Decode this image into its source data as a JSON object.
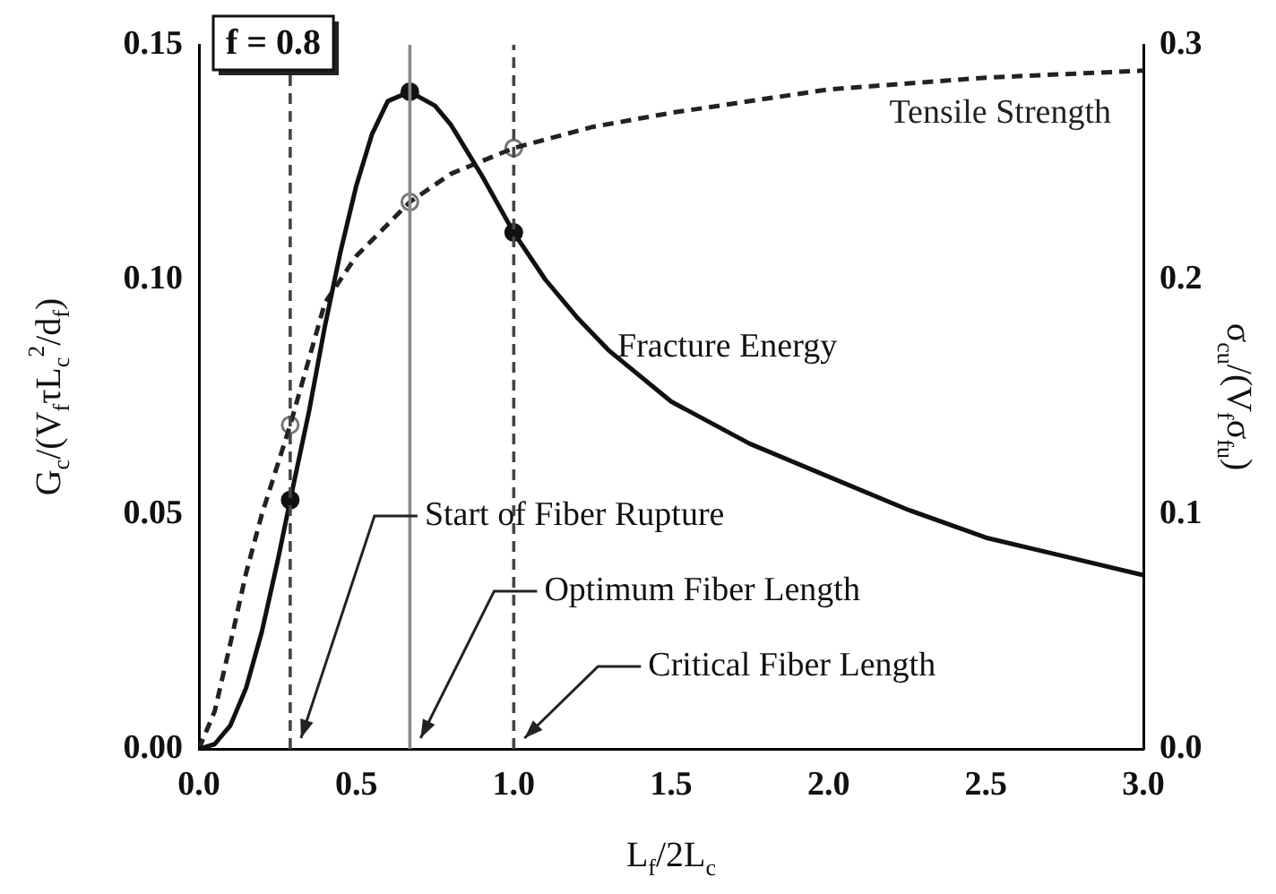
{
  "chart_data": {
    "type": "line",
    "xlabel": "L$_{f}$/2L$_{c}$",
    "ylabel": "G$_{c}$/(V$_{f}$τL$_{c}$$^{2}$/d$_{f}$)",
    "y2label": "σ$_{cu}$/(V$_{f}$σ$_{fu}$)",
    "xlim": [
      0,
      3
    ],
    "xticks": [
      {
        "value": 0,
        "label": "0.0"
      },
      {
        "value": 0.5,
        "label": "0.5"
      },
      {
        "value": 1,
        "label": "1.0"
      },
      {
        "value": 1.5,
        "label": "1.5"
      },
      {
        "value": 2,
        "label": "2.0"
      },
      {
        "value": 2.5,
        "label": "2.5"
      },
      {
        "value": 3,
        "label": "3.0"
      }
    ],
    "ylim": [
      0,
      0.15
    ],
    "yticks": [
      {
        "value": 0,
        "label": "0.00"
      },
      {
        "value": 0.05,
        "label": "0.05"
      },
      {
        "value": 0.1,
        "label": "0.10"
      },
      {
        "value": 0.15,
        "label": "0.15"
      }
    ],
    "y2lim": [
      0,
      0.3
    ],
    "y2ticks": [
      {
        "value": 0,
        "label": "0.0"
      },
      {
        "value": 0.1,
        "label": "0.1"
      },
      {
        "value": 0.2,
        "label": "0.2"
      },
      {
        "value": 0.3,
        "label": "0.3"
      }
    ],
    "grid": false,
    "legend": false,
    "series": [
      {
        "name": "Fracture Energy",
        "type": "line",
        "color": "#111111",
        "line_style": "solid",
        "marker": "none",
        "x": [
          0,
          0.05,
          0.1,
          0.15,
          0.2,
          0.25,
          0.29,
          0.35,
          0.4,
          0.45,
          0.5,
          0.55,
          0.6,
          0.67,
          0.75,
          0.8,
          0.9,
          1.0,
          1.1,
          1.2,
          1.3,
          1.5,
          1.75,
          2.0,
          2.25,
          2.5,
          2.75,
          3.0
        ],
        "values": [
          0,
          0.001,
          0.005,
          0.013,
          0.025,
          0.04,
          0.053,
          0.072,
          0.09,
          0.106,
          0.12,
          0.131,
          0.138,
          0.14,
          0.137,
          0.133,
          0.122,
          0.11,
          0.1,
          0.092,
          0.085,
          0.074,
          0.065,
          0.058,
          0.051,
          0.045,
          0.041,
          0.037
        ]
      },
      {
        "name": "Tensile Strength",
        "type": "line",
        "axis": "y2",
        "color": "#222222",
        "line_style": "dashed",
        "marker": "none",
        "x": [
          0,
          0.05,
          0.1,
          0.15,
          0.2,
          0.29,
          0.4,
          0.5,
          0.67,
          0.8,
          1.0,
          1.25,
          1.5,
          2.0,
          2.5,
          3.0
        ],
        "values": [
          0,
          0.016,
          0.045,
          0.075,
          0.1,
          0.138,
          0.19,
          0.21,
          0.233,
          0.245,
          0.256,
          0.265,
          0.271,
          0.281,
          0.286,
          0.289
        ]
      },
      {
        "type": "scatter",
        "color": "#111111",
        "marker": "circle",
        "x": [
          0.29,
          0.67,
          1.0
        ],
        "values": [
          0.053,
          0.14,
          0.11
        ]
      },
      {
        "type": "scatter",
        "axis": "y2",
        "color": "#777777",
        "marker": "circle",
        "x": [
          0.29,
          0.67,
          1.0
        ],
        "values": [
          0.138,
          0.233,
          0.256
        ]
      }
    ],
    "ref_lines": [
      {
        "axis": "x",
        "value": 0.29,
        "line_style": "dashed",
        "color": "#444444"
      },
      {
        "axis": "x",
        "value": 0.67,
        "line_style": "solid",
        "color": "#888888"
      },
      {
        "axis": "x",
        "value": 1.0,
        "line_style": "dashed",
        "color": "#444444"
      }
    ],
    "annotations": [
      "f = 0.8",
      "Start of Fiber Rupture",
      "Optimum Fiber Length",
      "Critical Fiber Length"
    ]
  }
}
